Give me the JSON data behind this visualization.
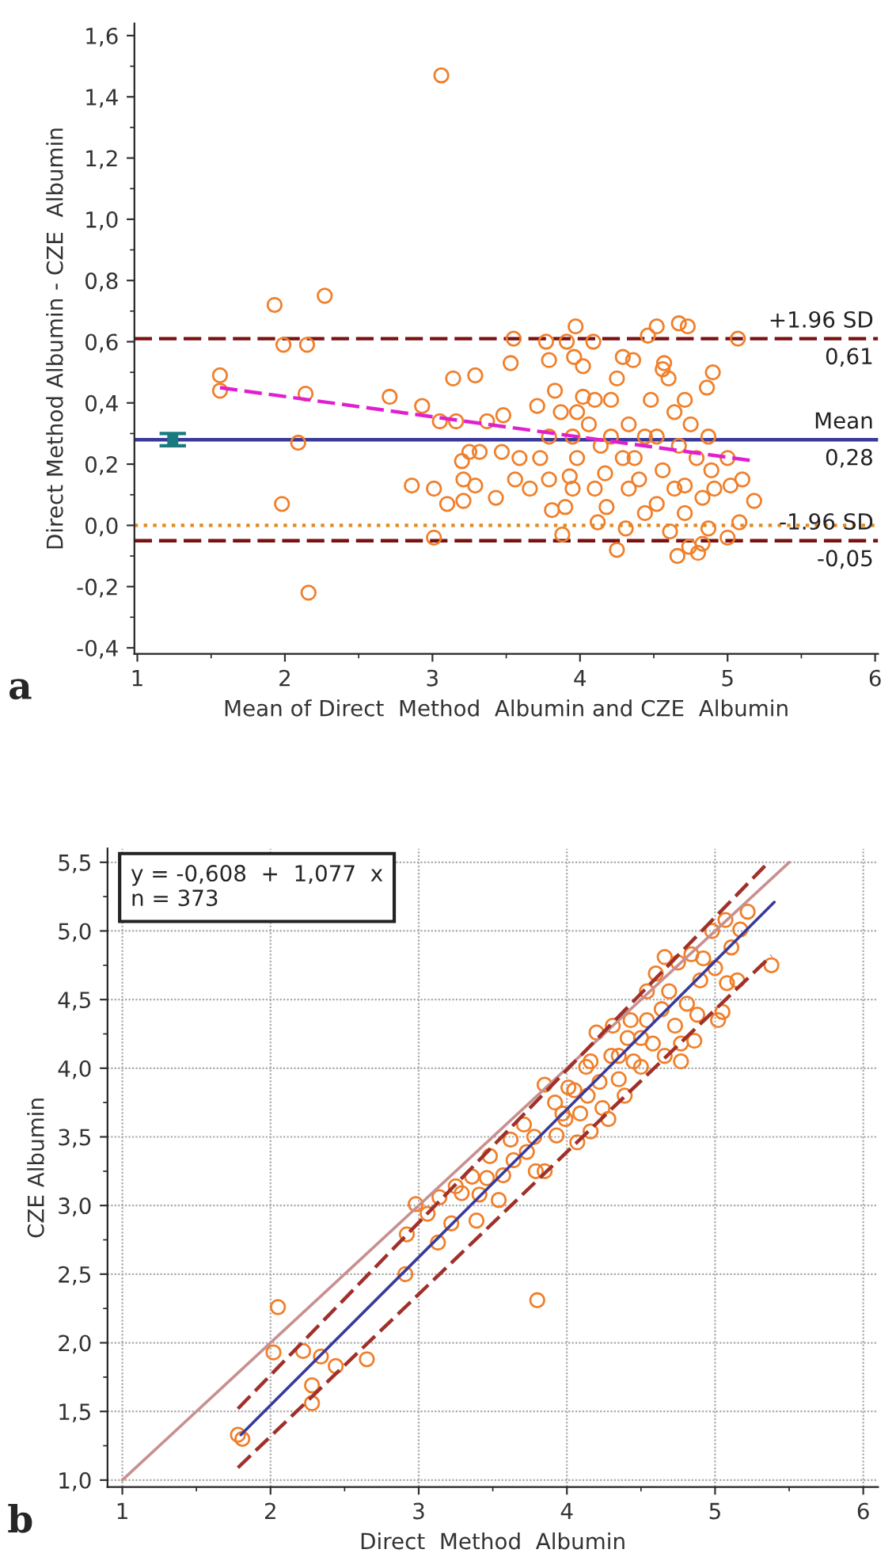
{
  "chart_data": [
    {
      "type": "scatter",
      "xlabel": "Mean of Direct  Method  Albumin and CZE  Albumin",
      "ylabel": "Direct Method Albumin - CZE  Albumin",
      "xlim": [
        0.98,
        6.02
      ],
      "ylim": [
        -0.42,
        1.64
      ],
      "xticks": [
        1,
        2,
        3,
        4,
        5,
        6
      ],
      "yticks": [
        {
          "value": -0.4,
          "label": "-0,4"
        },
        {
          "value": -0.2,
          "label": "-0,2"
        },
        {
          "value": 0,
          "label": "0,0"
        },
        {
          "value": 0.2,
          "label": "0,2"
        },
        {
          "value": 0.4,
          "label": "0,4"
        },
        {
          "value": 0.6,
          "label": "0,6"
        },
        {
          "value": 0.8,
          "label": "0,8"
        },
        {
          "value": 1.0,
          "label": "1,0"
        },
        {
          "value": 1.2,
          "label": "1,2"
        },
        {
          "value": 1.4,
          "label": "1,4"
        },
        {
          "value": 1.6,
          "label": "1,6"
        }
      ],
      "grid": false,
      "legend": false,
      "series": [
        {
          "color": "#f07f2a",
          "marker": "circle",
          "x": [
            1.93,
            2.27,
            3.06,
            1.56,
            1.56,
            1.99,
            2.15,
            2.14,
            2.09,
            1.98,
            2.16,
            2.71,
            2.93,
            3.05,
            2.86,
            3.01,
            3.01,
            3.1,
            3.14,
            3.29,
            3.16,
            3.2,
            3.21,
            3.21,
            3.29,
            3.25,
            3.32,
            3.43,
            3.37,
            3.48,
            3.53,
            3.55,
            3.47,
            3.56,
            3.66,
            3.59,
            3.71,
            3.77,
            3.79,
            3.81,
            3.9,
            3.88,
            3.97,
            3.91,
            4.09,
            3.96,
            3.79,
            3.93,
            4.25,
            4.31,
            4.12,
            4.18,
            4.36,
            4.46,
            4.52,
            4.67,
            4.73,
            4.57,
            4.9,
            4.86,
            5.07,
            5.18,
            5.1,
            5.02,
            5.0,
            5.08,
            4.87,
            4.66,
            4.8,
            4.83,
            4.74,
            4.71,
            4.61,
            4.89,
            4.91,
            4.83,
            5.0,
            4.02,
            4.06,
            4.14,
            4.21,
            4.25,
            4.33,
            4.37,
            4.4,
            4.48,
            4.52,
            4.56,
            4.6,
            4.64,
            4.67,
            4.71,
            4.75,
            4.79,
            4.52,
            4.44,
            4.17,
            4.1,
            3.98,
            3.95,
            3.87,
            3.79,
            3.73,
            3.83,
            4.02,
            4.29,
            4.56,
            4.44,
            4.21,
            4.1,
            4.33,
            4.64,
            4.71,
            4.87,
            3.95,
            4.29,
            3.98
          ],
          "values": [
            0.72,
            0.75,
            1.47,
            0.49,
            0.44,
            0.59,
            0.59,
            0.43,
            0.27,
            0.07,
            -0.22,
            0.42,
            0.39,
            0.34,
            0.13,
            0.12,
            -0.04,
            0.07,
            0.48,
            0.49,
            0.34,
            0.21,
            0.15,
            0.08,
            0.13,
            0.24,
            0.24,
            0.09,
            0.34,
            0.36,
            0.53,
            0.61,
            0.24,
            0.15,
            0.12,
            0.22,
            0.39,
            0.6,
            0.54,
            0.05,
            0.06,
            -0.03,
            0.65,
            0.6,
            0.6,
            0.55,
            0.15,
            0.16,
            -0.08,
            -0.01,
            0.01,
            0.06,
            0.54,
            0.62,
            0.65,
            0.66,
            0.65,
            0.53,
            0.5,
            0.45,
            0.61,
            0.08,
            0.15,
            0.13,
            -0.04,
            0.01,
            -0.01,
            -0.1,
            -0.09,
            -0.06,
            -0.07,
            0.04,
            -0.02,
            0.18,
            0.12,
            0.09,
            0.22,
            0.42,
            0.33,
            0.26,
            0.41,
            0.48,
            0.33,
            0.22,
            0.15,
            0.41,
            0.29,
            0.18,
            0.48,
            0.37,
            0.26,
            0.13,
            0.33,
            0.22,
            0.07,
            0.04,
            0.17,
            0.12,
            0.22,
            0.29,
            0.37,
            0.29,
            0.22,
            0.44,
            0.52,
            0.55,
            0.51,
            0.29,
            0.29,
            0.41,
            0.12,
            0.12,
            0.41,
            0.29,
            0.12,
            0.22,
            0.37
          ]
        },
        {
          "type": "line",
          "color": "#e020d0",
          "line_style": "dashed",
          "x": [
            1.56,
            5.19
          ],
          "values": [
            0.45,
            0.21
          ]
        },
        {
          "color": "#1a7a80",
          "marker": "square",
          "x": [
            1.24
          ],
          "values": [
            0.28
          ],
          "errors": [
            [
              0.26,
              0.3
            ]
          ]
        }
      ],
      "ref_lines": [
        {
          "axis": "y",
          "value": 0.61,
          "label": "+1.96 SD\n0,61",
          "color": "#7a1010",
          "line_style": "dashed"
        },
        {
          "axis": "y",
          "value": 0.28,
          "label": "Mean\n0,28",
          "color": "#3a3a9a",
          "line_style": "solid"
        },
        {
          "axis": "y",
          "value": 0,
          "color": "#e08a20",
          "line_style": "dotted"
        },
        {
          "axis": "y",
          "value": -0.05,
          "label": "-1.96 SD\n-0,05",
          "color": "#7a1010",
          "line_style": "dashed"
        }
      ],
      "annotations": [
        "a"
      ]
    },
    {
      "type": "scatter",
      "xlabel": "Direct  Method  Albumin",
      "ylabel": "CZE Albumin",
      "xlim": [
        0.9,
        6.1
      ],
      "ylim": [
        0.95,
        5.6
      ],
      "xticks": [
        1,
        2,
        3,
        4,
        5,
        6
      ],
      "yticks": [
        {
          "value": 1.0,
          "label": "1,0"
        },
        {
          "value": 1.5,
          "label": "1,5"
        },
        {
          "value": 2.0,
          "label": "2,0"
        },
        {
          "value": 2.5,
          "label": "2,5"
        },
        {
          "value": 3.0,
          "label": "3,0"
        },
        {
          "value": 3.5,
          "label": "3,5"
        },
        {
          "value": 4.0,
          "label": "4,0"
        },
        {
          "value": 4.5,
          "label": "4,5"
        },
        {
          "value": 5.0,
          "label": "5,0"
        },
        {
          "value": 5.5,
          "label": "5,5"
        }
      ],
      "grid": true,
      "legend": false,
      "series": [
        {
          "type": "line",
          "color": "#c89090",
          "line_style": "solid",
          "x": [
            1.0,
            5.5
          ],
          "values": [
            1.0,
            5.5
          ]
        },
        {
          "type": "line",
          "color": "#a0302a",
          "line_style": "dashed",
          "x": [
            1.78,
            5.36
          ],
          "values": [
            1.52,
            5.5
          ]
        },
        {
          "type": "line",
          "color": "#a0302a",
          "line_style": "dashed",
          "x": [
            1.78,
            5.38
          ],
          "values": [
            1.09,
            4.82
          ]
        },
        {
          "color": "#f07f2a",
          "marker": "circle",
          "x": [
            1.78,
            1.81,
            2.02,
            2.05,
            2.22,
            2.34,
            2.44,
            2.28,
            2.28,
            2.65,
            2.91,
            2.92,
            2.98,
            3.06,
            3.13,
            3.14,
            3.22,
            3.25,
            3.29,
            3.39,
            3.36,
            3.41,
            3.46,
            3.48,
            3.54,
            3.57,
            3.62,
            3.64,
            3.71,
            3.73,
            3.78,
            3.79,
            3.85,
            3.85,
            3.8,
            3.93,
            3.92,
            3.99,
            4.01,
            4.07,
            4.09,
            4.13,
            4.14,
            4.16,
            4.2,
            4.22,
            4.24,
            4.28,
            4.3,
            4.31,
            4.35,
            4.39,
            4.41,
            4.45,
            4.5,
            4.54,
            4.58,
            4.6,
            4.64,
            4.66,
            4.69,
            4.73,
            4.75,
            4.77,
            4.81,
            4.84,
            4.86,
            4.88,
            4.9,
            4.92,
            4.98,
            5.0,
            5.02,
            5.05,
            5.07,
            5.08,
            5.11,
            5.15,
            5.17,
            5.22,
            5.38,
            4.77,
            4.5,
            4.35,
            4.16,
            4.05,
            4.66,
            4.54,
            4.43,
            3.97
          ],
          "values": [
            1.33,
            1.3,
            1.93,
            2.26,
            1.94,
            1.9,
            1.83,
            1.69,
            1.56,
            1.88,
            2.5,
            2.79,
            3.01,
            2.94,
            2.73,
            3.06,
            2.87,
            3.14,
            3.09,
            2.89,
            3.21,
            3.08,
            3.2,
            3.36,
            3.04,
            3.22,
            3.48,
            3.33,
            3.59,
            3.39,
            3.5,
            3.25,
            3.25,
            3.88,
            2.31,
            3.51,
            3.75,
            3.63,
            3.86,
            3.46,
            3.67,
            4.01,
            3.8,
            3.54,
            4.26,
            3.9,
            3.71,
            3.63,
            4.09,
            4.31,
            3.92,
            3.8,
            4.22,
            4.05,
            4.01,
            4.35,
            4.18,
            4.69,
            4.43,
            4.09,
            4.56,
            4.31,
            4.77,
            4.18,
            4.47,
            4.83,
            4.2,
            4.39,
            4.64,
            4.8,
            5.0,
            4.73,
            4.35,
            4.41,
            5.08,
            4.62,
            4.88,
            4.64,
            5.01,
            5.14,
            4.75,
            4.05,
            4.22,
            4.09,
            4.05,
            3.84,
            4.81,
            4.56,
            4.35,
            3.67
          ]
        },
        {
          "type": "line",
          "color": "#3a3a9a",
          "line_style": "solid",
          "x": [
            1.8,
            5.4
          ],
          "values": [
            1.33,
            5.21
          ]
        }
      ],
      "annotations": [
        "y = -0,608  +  1,077  x\nn = 373",
        "b"
      ]
    }
  ]
}
